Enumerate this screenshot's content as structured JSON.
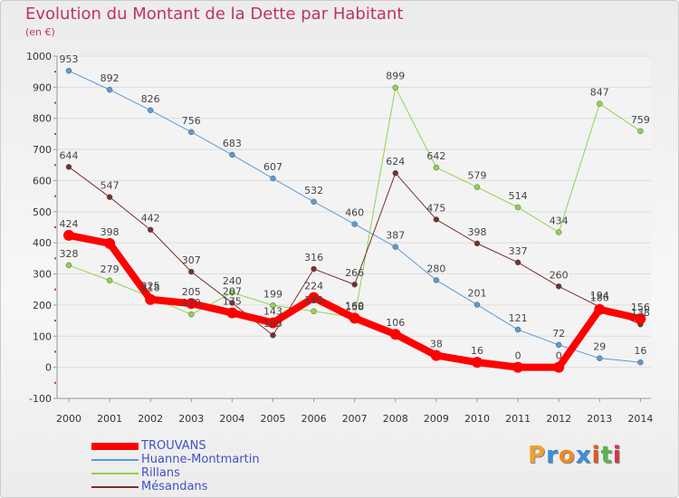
{
  "title": "Evolution du Montant de la Dette par Habitant",
  "unit": "(en €)",
  "brand": [
    "P",
    "r",
    "o",
    "x",
    "i",
    "t",
    "i"
  ],
  "brand_colors": [
    "#f0a030",
    "#3b8ed8",
    "#f08a20",
    "#3b8ed8",
    "#e05a20",
    "#59b64a",
    "#d8324a"
  ],
  "colors": {
    "axis_text": "#333333",
    "grid": "#dddddd",
    "title": "#c0306b",
    "legend_text": "#3f52c6"
  },
  "chart_data": {
    "type": "line",
    "title": "Evolution du Montant de la Dette par Habitant",
    "xlabel": "",
    "ylabel": "(en €)",
    "ylim": [
      -100,
      1000
    ],
    "yticks": [
      -100,
      0,
      100,
      200,
      300,
      400,
      500,
      600,
      700,
      800,
      900,
      1000
    ],
    "x": [
      "2000",
      "2001",
      "2002",
      "2003",
      "2004",
      "2005",
      "2006",
      "2007",
      "2008",
      "2009",
      "2010",
      "2011",
      "2012",
      "2013",
      "2014"
    ],
    "legend_position": "bottom-left",
    "series": [
      {
        "name": "TROUVANS",
        "color": "#ff0000",
        "width": 8,
        "values": [
          424,
          398,
          218,
          205,
          175,
          143,
          224,
          158,
          106,
          38,
          16,
          0,
          0,
          186,
          156
        ]
      },
      {
        "name": "Huanne-Montmartin",
        "color": "#5b9bd5",
        "width": 1,
        "values": [
          953,
          892,
          826,
          756,
          683,
          607,
          532,
          460,
          387,
          280,
          201,
          121,
          72,
          29,
          16
        ]
      },
      {
        "name": "Rillans",
        "color": "#8fd44f",
        "width": 1,
        "values": [
          328,
          279,
          225,
          170,
          240,
          199,
          180,
          160,
          899,
          642,
          579,
          514,
          434,
          847,
          759
        ]
      },
      {
        "name": "Mésandans",
        "color": "#7a2e2e",
        "width": 1,
        "values": [
          644,
          547,
          442,
          307,
          207,
          103,
          316,
          266,
          624,
          475,
          398,
          337,
          260,
          194,
          138
        ]
      }
    ],
    "data_labels": [
      [
        "424",
        "398",
        "218",
        "205",
        "175",
        "143",
        "224",
        "158",
        "106",
        "38",
        "16",
        "0",
        "0",
        "186",
        "156"
      ],
      [
        "953",
        "892",
        "826",
        "756",
        "683",
        "607",
        "532",
        "460",
        "387",
        "280",
        "201",
        "121",
        "72",
        "29",
        "16"
      ],
      [
        "328",
        "279",
        "225",
        "170",
        "240",
        "199",
        "180",
        "160",
        "899",
        "642",
        "579",
        "514",
        "434",
        "847",
        "759"
      ],
      [
        "644",
        "547",
        "442",
        "307",
        "207",
        "103",
        "316",
        "266",
        "624",
        "475",
        "398",
        "337",
        "260",
        "194",
        "138"
      ]
    ]
  }
}
